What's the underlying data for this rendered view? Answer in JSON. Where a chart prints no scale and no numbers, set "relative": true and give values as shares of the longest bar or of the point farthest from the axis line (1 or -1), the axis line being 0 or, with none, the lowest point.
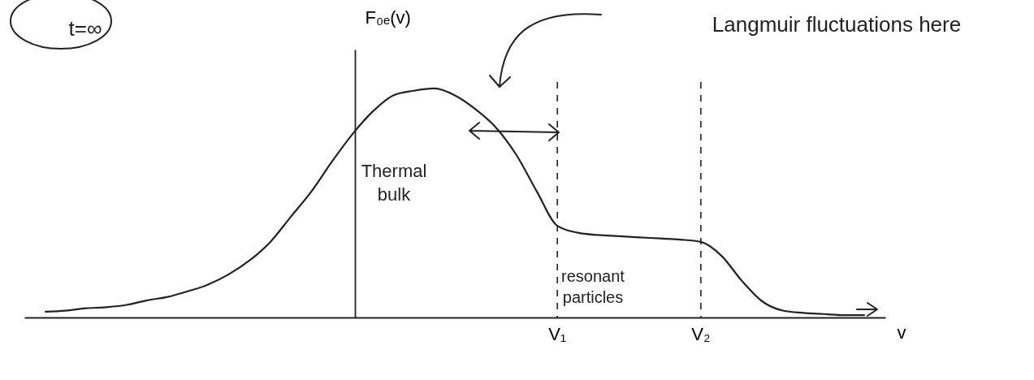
{
  "chart_data": {
    "type": "line",
    "relative": true,
    "xlabel": "v",
    "ylabel": "F₀ₑ(v)",
    "categories": [
      null,
      null,
      null,
      null,
      null,
      null,
      null,
      null,
      null,
      null,
      null,
      null,
      null,
      null,
      null,
      null,
      null,
      null,
      null,
      null,
      null,
      null,
      null,
      null,
      null,
      "V₁",
      null,
      null,
      null,
      null,
      null,
      null,
      "V₂",
      null,
      null,
      null,
      null,
      null,
      null,
      null,
      null
    ],
    "series": [
      {
        "color": "#222222",
        "values": [
          0.025,
          0.03,
          0.04,
          0.045,
          0.055,
          0.075,
          0.09,
          0.115,
          0.145,
          0.19,
          0.25,
          0.33,
          0.44,
          0.55,
          0.68,
          0.8,
          0.9,
          0.97,
          0.99,
          1.0,
          0.97,
          0.91,
          0.83,
          0.71,
          0.55,
          0.4,
          0.37,
          0.36,
          0.355,
          0.35,
          0.345,
          0.34,
          0.33,
          0.27,
          0.16,
          0.07,
          0.03,
          0.02,
          0.015,
          0.01,
          0.01
        ]
      }
    ],
    "ref_lines": [
      {
        "axis": "x",
        "value": "V₁",
        "line_style": "dashed",
        "color": "#222222"
      },
      {
        "axis": "x",
        "value": "V₂",
        "line_style": "dashed",
        "color": "#222222"
      }
    ],
    "annotations": [
      "t=∞",
      "Thermal bulk",
      "resonant particles",
      "Langmuir fluctuations here"
    ]
  }
}
